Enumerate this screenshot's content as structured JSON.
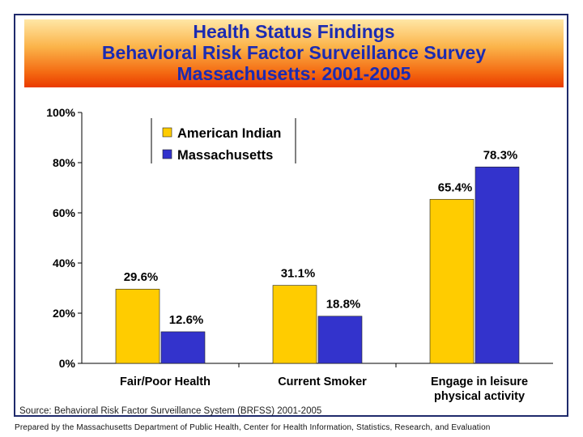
{
  "header": {
    "title_lines": [
      "Health Status Findings",
      "Behavioral Risk Factor Surveillance Survey",
      "Massachusetts: 2001-2005"
    ]
  },
  "chart_data": {
    "type": "bar",
    "categories": [
      "Fair/Poor Health",
      "Current Smoker",
      "Engage in leisure physical activity"
    ],
    "series": [
      {
        "name": "American Indian",
        "values": [
          29.6,
          31.1,
          65.4
        ],
        "labels": [
          "29.6%",
          "31.1%",
          "65.4%"
        ],
        "color": "#ffcc00"
      },
      {
        "name": "Massachusetts",
        "values": [
          12.6,
          18.8,
          78.3
        ],
        "labels": [
          "12.6%",
          "18.8%",
          "78.3%"
        ],
        "color": "#3333cc"
      }
    ],
    "ylim": [
      0,
      100
    ],
    "yticks": [
      0,
      20,
      40,
      60,
      80,
      100
    ],
    "ytick_labels": [
      "0%",
      "20%",
      "40%",
      "60%",
      "80%",
      "100%"
    ],
    "grid": false,
    "legend_position": "top-left"
  },
  "source_note": "Source: Behavioral Risk Factor Surveillance System (BRFSS) 2001-2005",
  "footer_note": "Prepared by the Massachusetts Department of Public Health, Center for Health Information, Statistics, Research, and Evaluation"
}
